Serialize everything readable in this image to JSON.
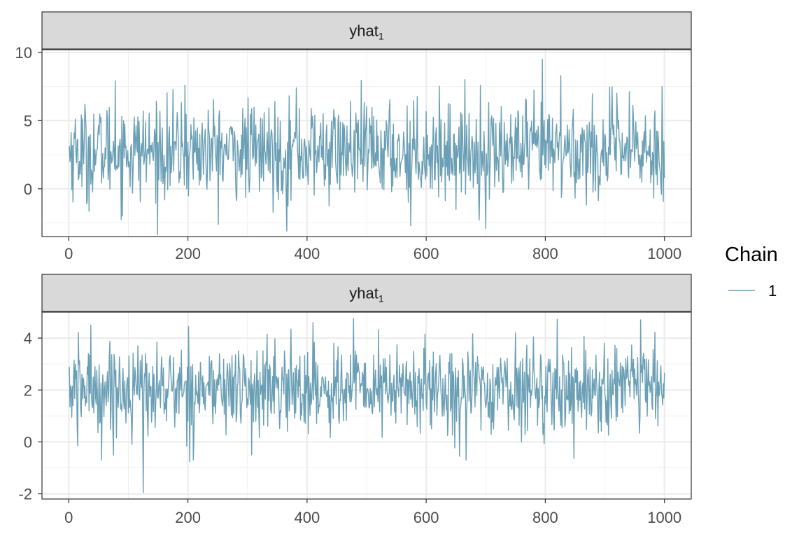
{
  "legend": {
    "title": "Chain",
    "items": [
      {
        "label": "1",
        "color": "#6a9fb5"
      }
    ]
  },
  "chart_data": [
    {
      "type": "line",
      "strip": {
        "label": "yhat",
        "subscript": "1"
      },
      "xlim": [
        -45,
        1045
      ],
      "ylim": [
        -3.5,
        10.2
      ],
      "xticks": [
        0,
        200,
        400,
        600,
        800,
        1000
      ],
      "xtick_labels": [
        "0",
        "200",
        "400",
        "600",
        "800",
        "1000"
      ],
      "yticks": [
        0,
        5,
        10
      ],
      "ytick_labels": [
        "0",
        "5",
        "10"
      ],
      "grid": true,
      "series": [
        {
          "name": "1",
          "color": "#6a9fb5",
          "x_start": 1,
          "x_step": 1,
          "n": 1000,
          "center": 2.75,
          "spread": 1.75,
          "points": [
            [
              366,
              -3.1
            ],
            [
              700,
              -2.9
            ],
            [
              574,
              -2.7
            ],
            [
              795,
              9.5
            ],
            [
              826,
              8.3
            ],
            [
              78,
              7.9
            ],
            [
              382,
              7.4
            ],
            [
              996,
              7.5
            ],
            [
              195,
              7.6
            ],
            [
              30,
              -1.1
            ],
            [
              920,
              7.0
            ]
          ]
        }
      ]
    },
    {
      "type": "line",
      "strip": {
        "label": "yhat",
        "subscript": "1"
      },
      "xlim": [
        -45,
        1045
      ],
      "ylim": [
        -2.2,
        5.0
      ],
      "xticks": [
        0,
        200,
        400,
        600,
        800,
        1000
      ],
      "xtick_labels": [
        "0",
        "200",
        "400",
        "600",
        "800",
        "1000"
      ],
      "yticks": [
        -2,
        0,
        2,
        4
      ],
      "ytick_labels": [
        "-2",
        "0",
        "2",
        "4"
      ],
      "grid": true,
      "series": [
        {
          "name": "1",
          "color": "#6a9fb5",
          "x_start": 1,
          "x_step": 1,
          "n": 1000,
          "center": 2.05,
          "spread": 0.85,
          "points": [
            [
              125,
              -1.95
            ],
            [
              55,
              -0.7
            ],
            [
              307,
              -0.5
            ],
            [
              667,
              -0.7
            ],
            [
              478,
              4.75
            ],
            [
              960,
              4.7
            ],
            [
              37,
              4.5
            ],
            [
              410,
              4.6
            ],
            [
              15,
              -0.15
            ]
          ]
        }
      ]
    }
  ]
}
